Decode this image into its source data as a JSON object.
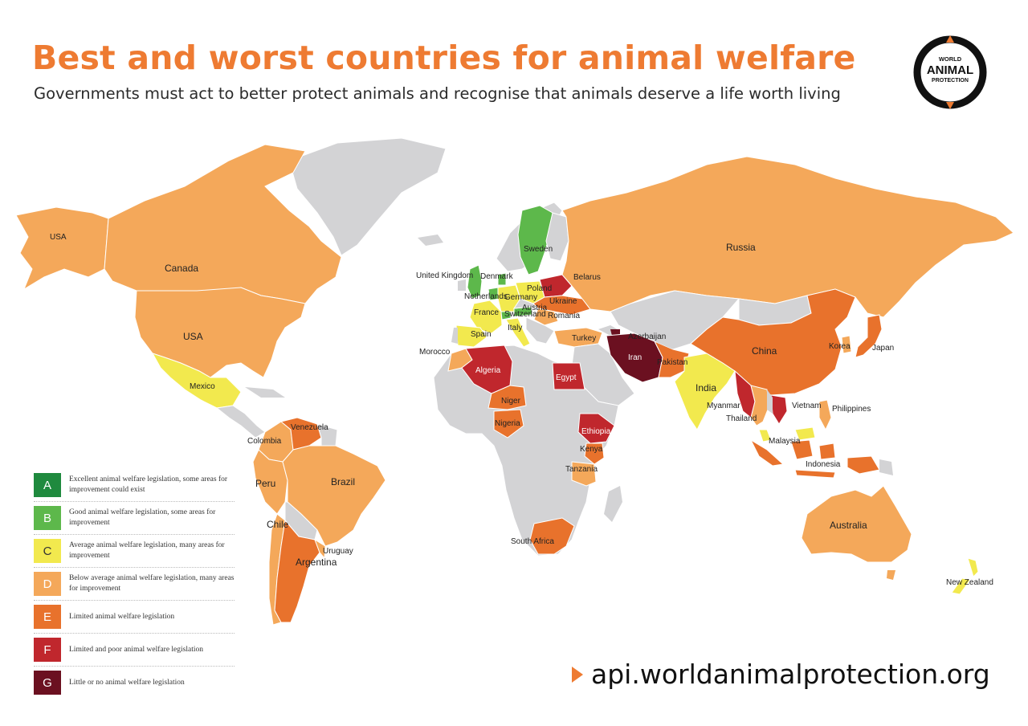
{
  "header": {
    "title": "Best and worst countries for animal welfare",
    "subtitle": "Governments must act to better protect animals and recognise that animals deserve a life worth living"
  },
  "logo": {
    "line1": "WORLD",
    "line2": "ANIMAL",
    "line3": "PROTECTION"
  },
  "colors": {
    "A": "#1f8a3e",
    "B": "#5db84b",
    "C": "#f2e94e",
    "D": "#f4a85a",
    "E": "#e8722c",
    "F": "#c0272d",
    "G": "#6b1020",
    "nodata": "#d3d3d5",
    "title": "#ee7b32"
  },
  "legend": [
    {
      "grade": "A",
      "description": "Excellent animal welfare legislation, some areas for improvement could exist"
    },
    {
      "grade": "B",
      "description": "Good animal welfare legislation, some areas for improvement"
    },
    {
      "grade": "C",
      "description": "Average animal welfare legislation, many areas for improvement"
    },
    {
      "grade": "D",
      "description": "Below average animal welfare legislation, many areas for improvement"
    },
    {
      "grade": "E",
      "description": "Limited animal welfare legislation"
    },
    {
      "grade": "F",
      "description": "Limited and poor animal welfare legislation"
    },
    {
      "grade": "G",
      "description": "Little or no animal welfare legislation"
    }
  ],
  "countries": [
    {
      "name": "USA",
      "grade": "D"
    },
    {
      "name": "Canada",
      "grade": "D"
    },
    {
      "name": "USA",
      "grade": "D"
    },
    {
      "name": "Mexico",
      "grade": "C"
    },
    {
      "name": "Venezuela",
      "grade": "E"
    },
    {
      "name": "Colombia",
      "grade": "D"
    },
    {
      "name": "Peru",
      "grade": "D"
    },
    {
      "name": "Brazil",
      "grade": "D"
    },
    {
      "name": "Chile",
      "grade": "D"
    },
    {
      "name": "Argentina",
      "grade": "E"
    },
    {
      "name": "Uruguay",
      "grade": "D"
    },
    {
      "name": "Sweden",
      "grade": "B"
    },
    {
      "name": "United Kingdom",
      "grade": "B"
    },
    {
      "name": "Denmark",
      "grade": "B"
    },
    {
      "name": "Netherlands",
      "grade": "B"
    },
    {
      "name": "Germany",
      "grade": "C"
    },
    {
      "name": "Poland",
      "grade": "C"
    },
    {
      "name": "Belarus",
      "grade": "F"
    },
    {
      "name": "Ukraine",
      "grade": "E"
    },
    {
      "name": "France",
      "grade": "C"
    },
    {
      "name": "Austria",
      "grade": "B"
    },
    {
      "name": "Switzerland",
      "grade": "B"
    },
    {
      "name": "Romania",
      "grade": "D"
    },
    {
      "name": "Spain",
      "grade": "C"
    },
    {
      "name": "Italy",
      "grade": "C"
    },
    {
      "name": "Turkey",
      "grade": "D"
    },
    {
      "name": "Azerbaijan",
      "grade": "G"
    },
    {
      "name": "Russia",
      "grade": "D"
    },
    {
      "name": "Morocco",
      "grade": "D"
    },
    {
      "name": "Algeria",
      "grade": "F"
    },
    {
      "name": "Egypt",
      "grade": "F"
    },
    {
      "name": "Niger",
      "grade": "E"
    },
    {
      "name": "Nigeria",
      "grade": "E"
    },
    {
      "name": "Ethiopia",
      "grade": "F"
    },
    {
      "name": "Kenya",
      "grade": "E"
    },
    {
      "name": "Tanzania",
      "grade": "D"
    },
    {
      "name": "South Africa",
      "grade": "E"
    },
    {
      "name": "Iran",
      "grade": "G"
    },
    {
      "name": "Pakistan",
      "grade": "E"
    },
    {
      "name": "India",
      "grade": "C"
    },
    {
      "name": "China",
      "grade": "E"
    },
    {
      "name": "Korea",
      "grade": "D"
    },
    {
      "name": "Japan",
      "grade": "E"
    },
    {
      "name": "Myanmar",
      "grade": "F"
    },
    {
      "name": "Thailand",
      "grade": "D"
    },
    {
      "name": "Vietnam",
      "grade": "F"
    },
    {
      "name": "Philippines",
      "grade": "D"
    },
    {
      "name": "Malaysia",
      "grade": "C"
    },
    {
      "name": "Indonesia",
      "grade": "E"
    },
    {
      "name": "Australia",
      "grade": "D"
    },
    {
      "name": "New Zealand",
      "grade": "C"
    }
  ],
  "footer": {
    "url": "api.worldanimalprotection.org"
  }
}
